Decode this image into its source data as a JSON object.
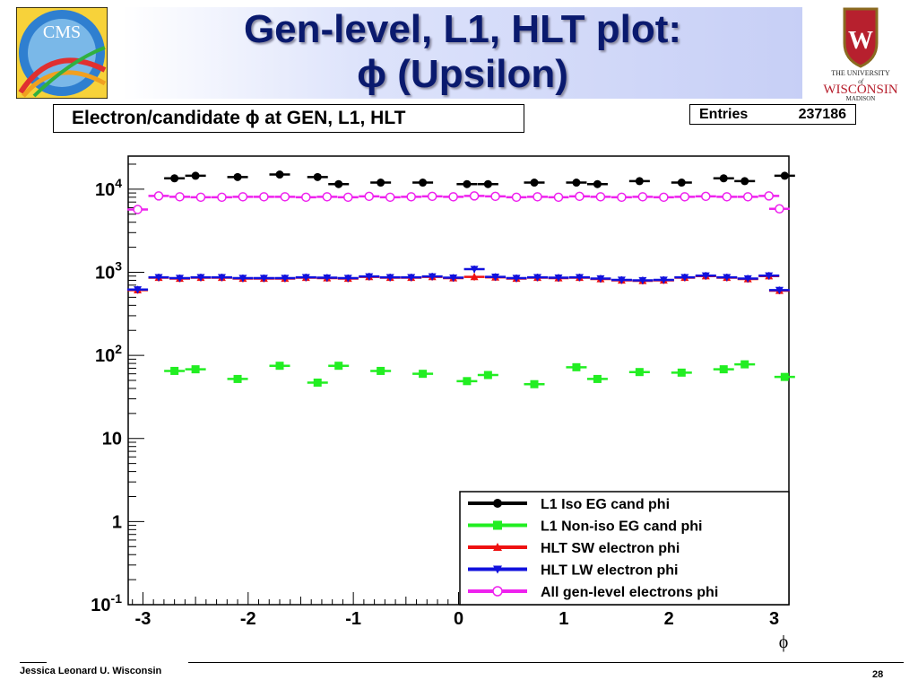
{
  "slide": {
    "title_line1": "Gen-level, L1, HLT plot:",
    "title_line2": "ϕ (Upsilon)",
    "footer_author": "Jessica Leonard U. Wisconsin",
    "page_number": "28",
    "cms_logo_text": "CMS",
    "uw_logo_text": {
      "line1": "THE UNIVERSITY",
      "line2": "of",
      "line3": "WISCONSIN",
      "line4": "MADISON",
      "crest_letter": "W"
    }
  },
  "chart_data": {
    "type": "scatter",
    "title": "Electron/candidate ϕ at GEN, L1, HLT",
    "stats": {
      "label": "Entries",
      "value": "237186"
    },
    "xlabel": "ϕ",
    "ylabel": "",
    "xlim": [
      -3.14,
      3.14
    ],
    "ylog": true,
    "ylim": [
      0.1,
      25000
    ],
    "x_ticks": [
      -3,
      -2,
      -1,
      0,
      1,
      2,
      3
    ],
    "x_tick_labels": [
      "-3",
      "-2",
      "-1",
      "0",
      "1",
      "2",
      "3"
    ],
    "y_ticks": [
      0.1,
      1,
      10,
      100,
      1000,
      10000
    ],
    "y_tick_labels": [
      [
        "10",
        "-1"
      ],
      [
        "1",
        ""
      ],
      [
        "10",
        ""
      ],
      [
        "10",
        "2"
      ],
      [
        "10",
        "3"
      ],
      [
        "10",
        "4"
      ]
    ],
    "grid": false,
    "legend_position": "bottom-right",
    "bin_width": 0.196,
    "series": [
      {
        "name": "L1 Iso EG cand phi",
        "color": "#000000",
        "marker": "circle",
        "x": [
          -2.7,
          -2.5,
          -2.1,
          -1.7,
          -1.34,
          -1.14,
          -0.74,
          -0.34,
          0.08,
          0.28,
          0.72,
          1.12,
          1.32,
          1.72,
          2.12,
          2.52,
          2.72,
          3.1
        ],
        "y": [
          13500,
          14500,
          14000,
          15000,
          14000,
          11500,
          12000,
          12000,
          11500,
          11500,
          12000,
          12000,
          11500,
          12500,
          12000,
          13500,
          12500,
          14500
        ]
      },
      {
        "name": "L1 Non-iso EG cand phi",
        "color": "#22ee22",
        "marker": "square",
        "x": [
          -2.7,
          -2.5,
          -2.1,
          -1.7,
          -1.34,
          -1.14,
          -0.74,
          -0.34,
          0.08,
          0.28,
          0.72,
          1.12,
          1.32,
          1.72,
          2.12,
          2.52,
          2.72,
          3.1
        ],
        "y": [
          65,
          68,
          52,
          75,
          47,
          75,
          65,
          60,
          49,
          58,
          45,
          72,
          52,
          63,
          62,
          68,
          78,
          55
        ]
      },
      {
        "name": "HLT SW electron phi",
        "color": "#ee1111",
        "marker": "triangle-up",
        "x": [
          -3.05,
          -2.85,
          -2.65,
          -2.45,
          -2.25,
          -2.05,
          -1.85,
          -1.65,
          -1.45,
          -1.25,
          -1.05,
          -0.85,
          -0.65,
          -0.45,
          -0.25,
          -0.05,
          0.15,
          0.35,
          0.55,
          0.75,
          0.95,
          1.15,
          1.35,
          1.55,
          1.75,
          1.95,
          2.15,
          2.35,
          2.55,
          2.75,
          2.95,
          3.05
        ],
        "y": [
          610,
          860,
          840,
          860,
          860,
          840,
          840,
          840,
          860,
          850,
          840,
          880,
          860,
          860,
          880,
          850,
          880,
          870,
          840,
          860,
          850,
          860,
          830,
          800,
          790,
          800,
          860,
          900,
          860,
          830,
          900,
          600
        ]
      },
      {
        "name": "HLT LW electron phi",
        "color": "#1111dd",
        "marker": "triangle-down",
        "x": [
          -3.05,
          -2.85,
          -2.65,
          -2.45,
          -2.25,
          -2.05,
          -1.85,
          -1.65,
          -1.45,
          -1.25,
          -1.05,
          -0.85,
          -0.65,
          -0.45,
          -0.25,
          -0.05,
          0.15,
          0.35,
          0.55,
          0.75,
          0.95,
          1.15,
          1.35,
          1.55,
          1.75,
          1.95,
          2.15,
          2.35,
          2.55,
          2.75,
          2.95,
          3.05
        ],
        "y": [
          620,
          870,
          850,
          870,
          870,
          850,
          850,
          850,
          870,
          860,
          850,
          890,
          870,
          870,
          890,
          860,
          1090,
          880,
          850,
          870,
          860,
          870,
          840,
          810,
          800,
          810,
          870,
          910,
          870,
          840,
          910,
          610
        ]
      },
      {
        "name": "All gen-level electrons phi",
        "color": "#ee22ee",
        "marker": "open-circle",
        "x": [
          -3.05,
          -2.85,
          -2.65,
          -2.45,
          -2.25,
          -2.05,
          -1.85,
          -1.65,
          -1.45,
          -1.25,
          -1.05,
          -0.85,
          -0.65,
          -0.45,
          -0.25,
          -0.05,
          0.15,
          0.35,
          0.55,
          0.75,
          0.95,
          1.15,
          1.35,
          1.55,
          1.75,
          1.95,
          2.15,
          2.35,
          2.55,
          2.75,
          2.95,
          3.05
        ],
        "y": [
          5700,
          8300,
          8100,
          8000,
          8000,
          8100,
          8100,
          8100,
          8000,
          8100,
          8000,
          8200,
          8000,
          8100,
          8200,
          8100,
          8300,
          8200,
          8000,
          8100,
          8000,
          8200,
          8100,
          8000,
          8100,
          8000,
          8100,
          8200,
          8100,
          8100,
          8300,
          5800
        ]
      }
    ]
  }
}
